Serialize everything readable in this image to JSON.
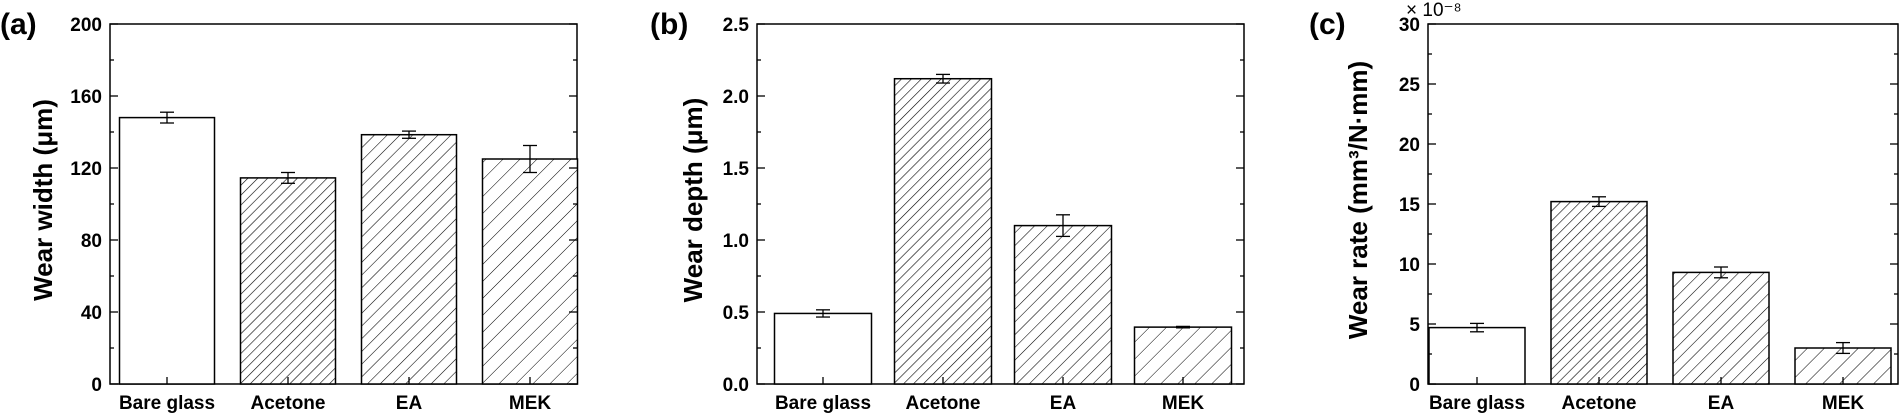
{
  "chart_data": [
    {
      "type": "bar",
      "panel_label": "(a)",
      "categories": [
        "Bare glass",
        "Acetone",
        "EA",
        "MEK"
      ],
      "values": [
        148,
        114.5,
        138.5,
        125
      ],
      "errors": [
        3,
        3,
        2,
        7.5
      ],
      "fills": [
        "none",
        "dense-hatch",
        "medium-hatch",
        "sparse-hatch"
      ],
      "ylim": [
        0,
        200
      ],
      "yticks": [
        0,
        40,
        80,
        120,
        160,
        200
      ],
      "ytick_labels": [
        "0",
        "40",
        "80",
        "120",
        "160",
        "200"
      ],
      "ylabel": "Wear width (μm)",
      "exponent_label": ""
    },
    {
      "type": "bar",
      "panel_label": "(b)",
      "categories": [
        "Bare glass",
        "Acetone",
        "EA",
        "MEK"
      ],
      "values": [
        0.49,
        2.12,
        1.1,
        0.395
      ],
      "errors": [
        0.025,
        0.03,
        0.075,
        0.005
      ],
      "fills": [
        "none",
        "dense-hatch",
        "medium-hatch",
        "sparse-hatch"
      ],
      "ylim": [
        0,
        2.5
      ],
      "yticks": [
        0,
        0.5,
        1.0,
        1.5,
        2.0,
        2.5
      ],
      "ytick_labels": [
        "0.0",
        "0.5",
        "1.0",
        "1.5",
        "2.0",
        "2.5"
      ],
      "ylabel": "Wear depth (μm)",
      "exponent_label": ""
    },
    {
      "type": "bar",
      "panel_label": "(c)",
      "categories": [
        "Bare glass",
        "Acetone",
        "EA",
        "MEK"
      ],
      "values": [
        4.7,
        15.2,
        9.3,
        3.0
      ],
      "errors": [
        0.35,
        0.4,
        0.45,
        0.45
      ],
      "fills": [
        "none",
        "dense-hatch",
        "medium-hatch",
        "sparse-hatch"
      ],
      "ylim": [
        0,
        30
      ],
      "yticks": [
        0,
        5,
        10,
        15,
        20,
        25,
        30
      ],
      "ytick_labels": [
        "0",
        "5",
        "10",
        "15",
        "20",
        "25",
        "30"
      ],
      "ylabel": "Wear rate (mm³/N·mm)",
      "exponent_label": "× 10⁻⁸"
    }
  ]
}
